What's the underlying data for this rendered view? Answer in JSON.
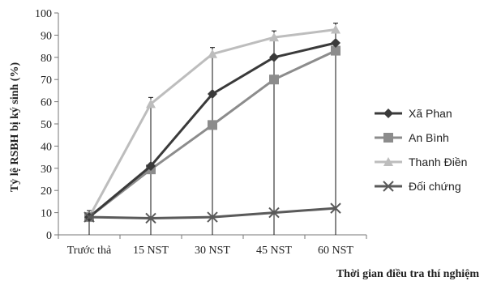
{
  "chart_data": {
    "type": "line",
    "title": "",
    "xlabel": "Thời gian điều tra thí nghiệm",
    "ylabel": "Tỷ lệ RSBH bị ký sinh (%)",
    "categories": [
      "Trước thả",
      "15 NST",
      "30 NST",
      "45 NST",
      "60 NST"
    ],
    "ylim": [
      0,
      100
    ],
    "yticks": [
      "0",
      "10",
      "20",
      "30",
      "40",
      "50",
      "60",
      "70",
      "80",
      "90",
      "100"
    ],
    "grid": false,
    "error_bars": true,
    "legend_position": "right",
    "series": [
      {
        "name": "Xã Phan",
        "values": [
          8,
          31,
          63.5,
          80,
          86.5
        ],
        "marker": "diamond",
        "color": "#3a3a3a"
      },
      {
        "name": "An Bình",
        "values": [
          8,
          29.5,
          49.5,
          70,
          83
        ],
        "marker": "square",
        "color": "#8c8c8c"
      },
      {
        "name": "Thanh Điền",
        "values": [
          8,
          59,
          81.5,
          89,
          92.5
        ],
        "marker": "triangle",
        "color": "#bdbdbd"
      },
      {
        "name": "Đối chứng",
        "values": [
          8,
          7.5,
          8,
          10,
          12
        ],
        "marker": "x",
        "color": "#5a5a5a"
      }
    ]
  }
}
